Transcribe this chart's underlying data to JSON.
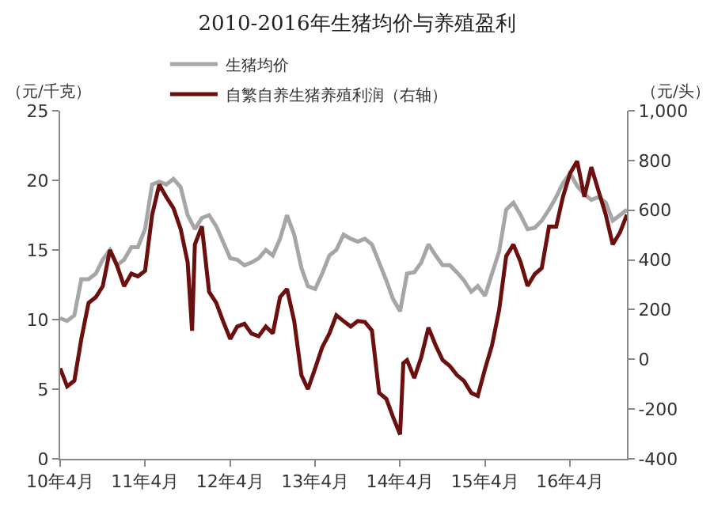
{
  "chart_data": {
    "type": "line",
    "title": "2010-2016年生猪均价与养殖盈利",
    "ylabel": "（元/千克）",
    "y2label": "（元/头）",
    "legend": "top",
    "x": [
      "2010-04",
      "2010-05",
      "2010-06",
      "2010-07",
      "2010-08",
      "2010-09",
      "2010-10",
      "2010-11",
      "2010-12",
      "2011-01",
      "2011-02",
      "2011-03",
      "2011-04",
      "2011-05",
      "2011-06",
      "2011-07",
      "2011-08",
      "2011-09",
      "2011-10",
      "2011-11",
      "2011-12",
      "2012-01",
      "2012-02",
      "2012-03",
      "2012-04",
      "2012-05",
      "2012-06",
      "2012-07",
      "2012-08",
      "2012-09",
      "2012-10",
      "2012-11",
      "2012-12",
      "2013-01",
      "2013-02",
      "2013-03",
      "2013-04",
      "2013-05",
      "2013-06",
      "2013-07",
      "2013-08",
      "2013-09",
      "2013-10",
      "2013-11",
      "2013-12",
      "2014-01",
      "2014-02",
      "2014-03",
      "2014-04",
      "2014-05",
      "2014-06",
      "2014-07",
      "2014-08",
      "2014-09",
      "2014-10",
      "2014-11",
      "2014-12",
      "2015-01",
      "2015-02",
      "2015-03",
      "2015-04",
      "2015-05",
      "2015-06",
      "2015-07",
      "2015-08",
      "2015-09",
      "2015-10",
      "2015-11",
      "2015-12",
      "2016-01",
      "2016-02",
      "2016-03",
      "2016-04",
      "2016-05",
      "2016-06",
      "2016-07",
      "2016-08",
      "2016-09",
      "2016-10",
      "2016-11",
      "2016-12"
    ],
    "series": [
      {
        "name": "生猪均价",
        "color": "#a6a6a6",
        "values": [
          10.1,
          9.9,
          10.3,
          12.9,
          12.9,
          13.3,
          14.3,
          15,
          13.9,
          14.3,
          15.2,
          15.2,
          16.5,
          19.7,
          19.9,
          19.7,
          20.1,
          19.5,
          17.5,
          16.5,
          17.3,
          17.5,
          16.7,
          15.6,
          14.4,
          14.3,
          13.9,
          14.1,
          14.4,
          15,
          14.6,
          15.8,
          17.5,
          16.1,
          13.7,
          12.4,
          12.2,
          13.3,
          14.6,
          15,
          16.1,
          15.8,
          15.6,
          15.8,
          15.4,
          14.1,
          12.8,
          11.5,
          10.6,
          13.3,
          13.4,
          14.1,
          15.4,
          14.6,
          13.9,
          13.9,
          13.4,
          12.8,
          12.0,
          12.4,
          11.7,
          13.3,
          14.9,
          17.9,
          18.4,
          17.5,
          16.5,
          16.6,
          17.1,
          17.9,
          18.8,
          19.8,
          20.5,
          19.6,
          19,
          18.6,
          18.8,
          18.4,
          17.1,
          17.5,
          17.9
        ]
      },
      {
        "name": "自繁自养生猪养殖利润（右轴）",
        "color": "#6b0f0f",
        "axis": "y2",
        "x": [
          "2010-04",
          "2010-05",
          "2010-06",
          "2010-07",
          "2010-08",
          "2010-09",
          "2010-10",
          "2010-11",
          "2010-12",
          "2011-01",
          "2011-02",
          "2011-03",
          "2011-04",
          "2011-05",
          "2011-06",
          "2011-07",
          "2011-08",
          "2011-09",
          "2011-10",
          "2011-10-20",
          "2011-11",
          "2011-12",
          "2012-01",
          "2012-02",
          "2012-03",
          "2012-04",
          "2012-05",
          "2012-06",
          "2012-07",
          "2012-08",
          "2012-09",
          "2012-10",
          "2012-11",
          "2012-12",
          "2013-01",
          "2013-02",
          "2013-03",
          "2013-04",
          "2013-05",
          "2013-06",
          "2013-07",
          "2013-08",
          "2013-09",
          "2013-10",
          "2013-11",
          "2013-12",
          "2014-01",
          "2014-02",
          "2014-03",
          "2014-04",
          "2014-04-15",
          "2014-05",
          "2014-06",
          "2014-07",
          "2014-08",
          "2014-09",
          "2014-10",
          "2014-11",
          "2014-12",
          "2015-01",
          "2015-02",
          "2015-03",
          "2015-04",
          "2015-05",
          "2015-06",
          "2015-07",
          "2015-08",
          "2015-09",
          "2015-10",
          "2015-11",
          "2015-12",
          "2016-01",
          "2016-02",
          "2016-03",
          "2016-04",
          "2016-05",
          "2016-06",
          "2016-07",
          "2016-08",
          "2016-09",
          "2016-10",
          "2016-11",
          "2016-12"
        ],
        "values": [
          -36,
          -109,
          -86,
          82,
          227,
          250,
          294,
          440,
          378,
          294,
          345,
          334,
          356,
          580,
          703,
          653,
          608,
          524,
          390,
          115,
          462,
          535,
          272,
          227,
          154,
          82,
          132,
          143,
          104,
          93,
          132,
          104,
          250,
          283,
          154,
          -64,
          -120,
          -36,
          48,
          104,
          177,
          154,
          132,
          154,
          150,
          116,
          -135,
          -159,
          -230,
          -302,
          -15,
          -3,
          -75,
          9,
          128,
          56,
          -3,
          -27,
          -63,
          -87,
          -135,
          -147,
          -39,
          56,
          200,
          415,
          462,
          391,
          295,
          343,
          367,
          534,
          534,
          654,
          749,
          797,
          654,
          773,
          677,
          582,
          462,
          510,
          582
        ]
      }
    ],
    "xlim": [
      "2010-04",
      "2016-12"
    ],
    "xticks": [
      {
        "value": "2010-04",
        "label": "10年4月"
      },
      {
        "value": "2011-04",
        "label": "11年4月"
      },
      {
        "value": "2012-04",
        "label": "12年4月"
      },
      {
        "value": "2013-04",
        "label": "13年4月"
      },
      {
        "value": "2014-04",
        "label": "14年4月"
      },
      {
        "value": "2015-04",
        "label": "15年4月"
      },
      {
        "value": "2016-04",
        "label": "16年4月"
      }
    ],
    "ylim": [
      0,
      25
    ],
    "yticks": [
      0,
      5,
      10,
      15,
      20,
      25
    ],
    "y2lim": [
      -400,
      1000
    ],
    "y2ticks": [
      -400,
      -200,
      0,
      200,
      400,
      600,
      800,
      {
        "value": 1000,
        "label": "1,000"
      }
    ]
  }
}
